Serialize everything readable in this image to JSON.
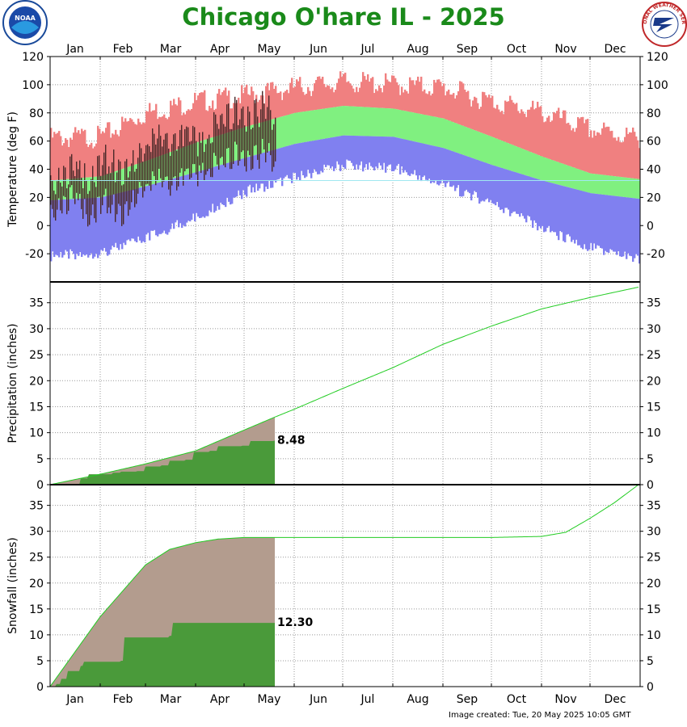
{
  "title": "Chicago O'hare IL - 2025",
  "credit": "Image created: Tue, 20 May 2025 10:05 GMT",
  "logos": {
    "left": "NOAA",
    "right": "NATIONAL WEATHER SERVICE"
  },
  "colors": {
    "record_high": "#f08080",
    "normal_band": "#80f080",
    "record_low": "#8080f0",
    "observed": "#4b2a2a",
    "normal_line": "#22cc22",
    "accum_fill": "#4a9a3a",
    "normal_accum_fill": "#b39c8e"
  },
  "months": [
    "Jan",
    "Feb",
    "Mar",
    "Apr",
    "May",
    "Jun",
    "Jul",
    "Aug",
    "Sep",
    "Oct",
    "Nov",
    "Dec"
  ],
  "chart_data": [
    {
      "type": "bar",
      "panel": "temperature",
      "ylabel": "Temperature (deg F)",
      "ylim": [
        -40,
        120
      ],
      "yticks": [
        -20,
        0,
        20,
        40,
        60,
        80,
        100,
        120
      ],
      "x_unit": "day of year",
      "observed_through_day": 140,
      "series": [
        {
          "name": "",
          "role": "record_high",
          "x": [
            1,
            32,
            60,
            91,
            121,
            152,
            182,
            213,
            244,
            274,
            305,
            335,
            365
          ],
          "values": [
            62,
            63,
            80,
            88,
            92,
            98,
            102,
            100,
            98,
            88,
            80,
            68,
            62
          ]
        },
        {
          "name": "",
          "role": "normal_high",
          "x": [
            1,
            32,
            60,
            91,
            121,
            152,
            182,
            213,
            244,
            274,
            305,
            335,
            365
          ],
          "values": [
            32,
            35,
            46,
            59,
            70,
            80,
            85,
            83,
            76,
            63,
            49,
            37,
            33
          ]
        },
        {
          "name": "",
          "role": "normal_low",
          "x": [
            1,
            32,
            60,
            91,
            121,
            152,
            182,
            213,
            244,
            274,
            305,
            335,
            365
          ],
          "values": [
            18,
            20,
            28,
            38,
            48,
            58,
            64,
            63,
            55,
            43,
            32,
            23,
            19
          ]
        },
        {
          "name": "",
          "role": "record_low",
          "x": [
            1,
            32,
            60,
            91,
            121,
            152,
            182,
            213,
            244,
            274,
            305,
            335,
            365
          ],
          "values": [
            -18,
            -15,
            -5,
            10,
            28,
            38,
            47,
            45,
            33,
            20,
            2,
            -12,
            -20
          ]
        },
        {
          "name": "",
          "role": "observed_high",
          "x": [
            5,
            15,
            25,
            35,
            45,
            55,
            65,
            75,
            85,
            95,
            105,
            115,
            125,
            135,
            140
          ],
          "values": [
            30,
            40,
            30,
            50,
            35,
            45,
            65,
            60,
            70,
            55,
            75,
            80,
            75,
            88,
            70
          ]
        },
        {
          "name": "",
          "role": "observed_low",
          "x": [
            5,
            15,
            25,
            35,
            45,
            55,
            65,
            75,
            85,
            95,
            105,
            115,
            125,
            135,
            140
          ],
          "values": [
            10,
            20,
            5,
            20,
            5,
            20,
            35,
            30,
            40,
            35,
            45,
            50,
            45,
            55,
            40
          ]
        }
      ]
    },
    {
      "type": "area",
      "panel": "precipitation",
      "ylabel": "Precipitation (inches)",
      "ylim": [
        0,
        39
      ],
      "yticks": [
        0,
        5,
        10,
        15,
        20,
        25,
        30,
        35
      ],
      "x_unit": "day of year",
      "observed_total_label": "8.48",
      "series": [
        {
          "name": "",
          "role": "normal_accum",
          "x": [
            1,
            32,
            60,
            91,
            121,
            140,
            152,
            182,
            213,
            244,
            274,
            305,
            335,
            365
          ],
          "values": [
            0,
            2.0,
            4.0,
            6.5,
            10.5,
            13.0,
            14.5,
            18.5,
            22.5,
            27.0,
            30.5,
            33.8,
            36.0,
            38.0
          ]
        },
        {
          "name": "",
          "role": "observed_accum",
          "x": [
            1,
            20,
            25,
            40,
            45,
            55,
            60,
            70,
            75,
            85,
            90,
            100,
            105,
            120,
            125,
            140
          ],
          "values": [
            0,
            1.2,
            2.0,
            2.3,
            2.5,
            2.6,
            3.5,
            3.7,
            4.6,
            4.8,
            6.3,
            6.5,
            7.4,
            7.5,
            8.4,
            8.48
          ]
        }
      ]
    },
    {
      "type": "area",
      "panel": "snowfall",
      "ylabel": "Snowfall (inches)",
      "ylim": [
        0,
        39
      ],
      "yticks": [
        0,
        5,
        10,
        15,
        20,
        25,
        30,
        35
      ],
      "x_unit": "day of year",
      "observed_total_label": "12.30",
      "series": [
        {
          "name": "",
          "role": "normal_accum",
          "x": [
            1,
            32,
            60,
            75,
            91,
            105,
            121,
            140,
            152,
            182,
            213,
            244,
            274,
            305,
            320,
            335,
            350,
            365
          ],
          "values": [
            0,
            13.5,
            23.5,
            26.5,
            27.8,
            28.5,
            28.8,
            28.8,
            28.8,
            28.8,
            28.8,
            28.8,
            28.8,
            29.0,
            29.8,
            32.5,
            35.5,
            39.0
          ]
        },
        {
          "name": "",
          "role": "observed_accum",
          "x": [
            1,
            5,
            8,
            12,
            20,
            22,
            45,
            47,
            75,
            77,
            140
          ],
          "values": [
            0,
            0.5,
            1.5,
            3.0,
            4.0,
            4.8,
            5.0,
            9.5,
            9.8,
            12.3,
            12.3
          ]
        }
      ]
    }
  ]
}
